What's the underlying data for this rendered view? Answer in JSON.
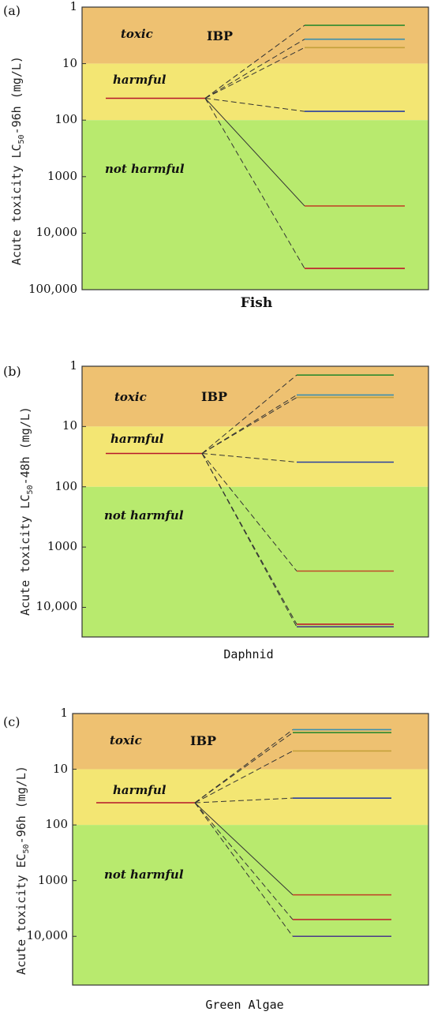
{
  "zones": {
    "toxic": "toxic",
    "harmful": "harmful",
    "not_harmful": "not harmful",
    "compound": "IBP"
  },
  "colors": {
    "toxic_band": "#eec171",
    "harmful_band": "#f3e673",
    "not_harmful_band": "#b8ea6e"
  },
  "chart_data": [
    {
      "type": "line",
      "panel_label": "(a)",
      "ylabel_prefix": "Acute toxicity LC",
      "ylabel_sub": "50",
      "ylabel_suffix": "-96h (mg/L)",
      "xlabel": "Fish",
      "xlabel_bold": true,
      "yscale": "log",
      "y_reversed": true,
      "ylim": [
        1,
        100000
      ],
      "y_ticks": [
        1,
        10,
        100,
        1000,
        10000,
        100000
      ],
      "y_tick_labels": [
        "1",
        "10",
        "100",
        "1000",
        "10,000",
        "100,000"
      ],
      "bands": {
        "toxic": [
          1,
          10
        ],
        "harmful": [
          10,
          100
        ],
        "not_harmful": [
          100,
          100000
        ]
      },
      "parent_value": 41,
      "products": [
        {
          "value": 2.1,
          "color": "#2e8b2e",
          "style": "dashed"
        },
        {
          "value": 3.7,
          "color": "#3a8fb0",
          "style": "dashed"
        },
        {
          "value": 5.2,
          "color": "#c4a13a",
          "style": "dashed"
        },
        {
          "value": 70,
          "color": "#2a3fa0",
          "style": "dashed"
        },
        {
          "value": 3300,
          "color": "#c04a2a",
          "style": "solid"
        },
        {
          "value": 42000,
          "color": "#c0192a",
          "style": "dashed"
        }
      ]
    },
    {
      "type": "line",
      "panel_label": "(b)",
      "ylabel_prefix": "Acute toxicity LC",
      "ylabel_sub": "50",
      "ylabel_suffix": "-48h (mg/L)",
      "xlabel": "Daphnid",
      "xlabel_bold": false,
      "yscale": "log",
      "y_reversed": true,
      "ylim": [
        1,
        31000
      ],
      "y_ticks": [
        1,
        10,
        100,
        1000,
        10000
      ],
      "y_tick_labels": [
        "1",
        "10",
        "100",
        "1000",
        "10,000"
      ],
      "bands": {
        "toxic": [
          1,
          10
        ],
        "harmful": [
          10,
          100
        ],
        "not_harmful": [
          100,
          31000
        ]
      },
      "parent_value": 28,
      "products": [
        {
          "value": 1.4,
          "color": "#2e8b2e",
          "style": "dashed"
        },
        {
          "value": 3.0,
          "color": "#3a8fb0",
          "style": "dashed"
        },
        {
          "value": 3.3,
          "color": "#c4a13a",
          "style": "dashed"
        },
        {
          "value": 39,
          "color": "#2a3fa0",
          "style": "dashed"
        },
        {
          "value": 2500,
          "color": "#c04a2a",
          "style": "dashed"
        },
        {
          "value": 19000,
          "color": "#c0192a",
          "style": "dashed"
        },
        {
          "value": 21000,
          "color": "#4a3a8a",
          "style": "dashed"
        }
      ]
    },
    {
      "type": "line",
      "panel_label": "(c)",
      "ylabel_prefix": "Acute toxicity EC",
      "ylabel_sub": "50",
      "ylabel_suffix": "-96h (mg/L)",
      "xlabel": "Green Algae",
      "xlabel_bold": false,
      "yscale": "log",
      "y_reversed": true,
      "ylim": [
        1,
        75000
      ],
      "y_ticks": [
        1,
        10,
        100,
        1000,
        10000
      ],
      "y_tick_labels": [
        "1",
        "10",
        "100",
        "1000",
        "10,000"
      ],
      "bands": {
        "toxic": [
          1,
          10
        ],
        "harmful": [
          10,
          100
        ],
        "not_harmful": [
          100,
          75000
        ]
      },
      "parent_value": 40,
      "products": [
        {
          "value": 1.95,
          "color": "#3a8fb0",
          "style": "dashed"
        },
        {
          "value": 2.2,
          "color": "#2e8b2e",
          "style": "dashed"
        },
        {
          "value": 4.7,
          "color": "#c4a13a",
          "style": "dashed"
        },
        {
          "value": 33,
          "color": "#2a3fa0",
          "style": "dashed"
        },
        {
          "value": 1800,
          "color": "#c04a2a",
          "style": "solid"
        },
        {
          "value": 5000,
          "color": "#c0192a",
          "style": "dashed"
        },
        {
          "value": 10000,
          "color": "#4a3a8a",
          "style": "dashed"
        }
      ]
    }
  ]
}
